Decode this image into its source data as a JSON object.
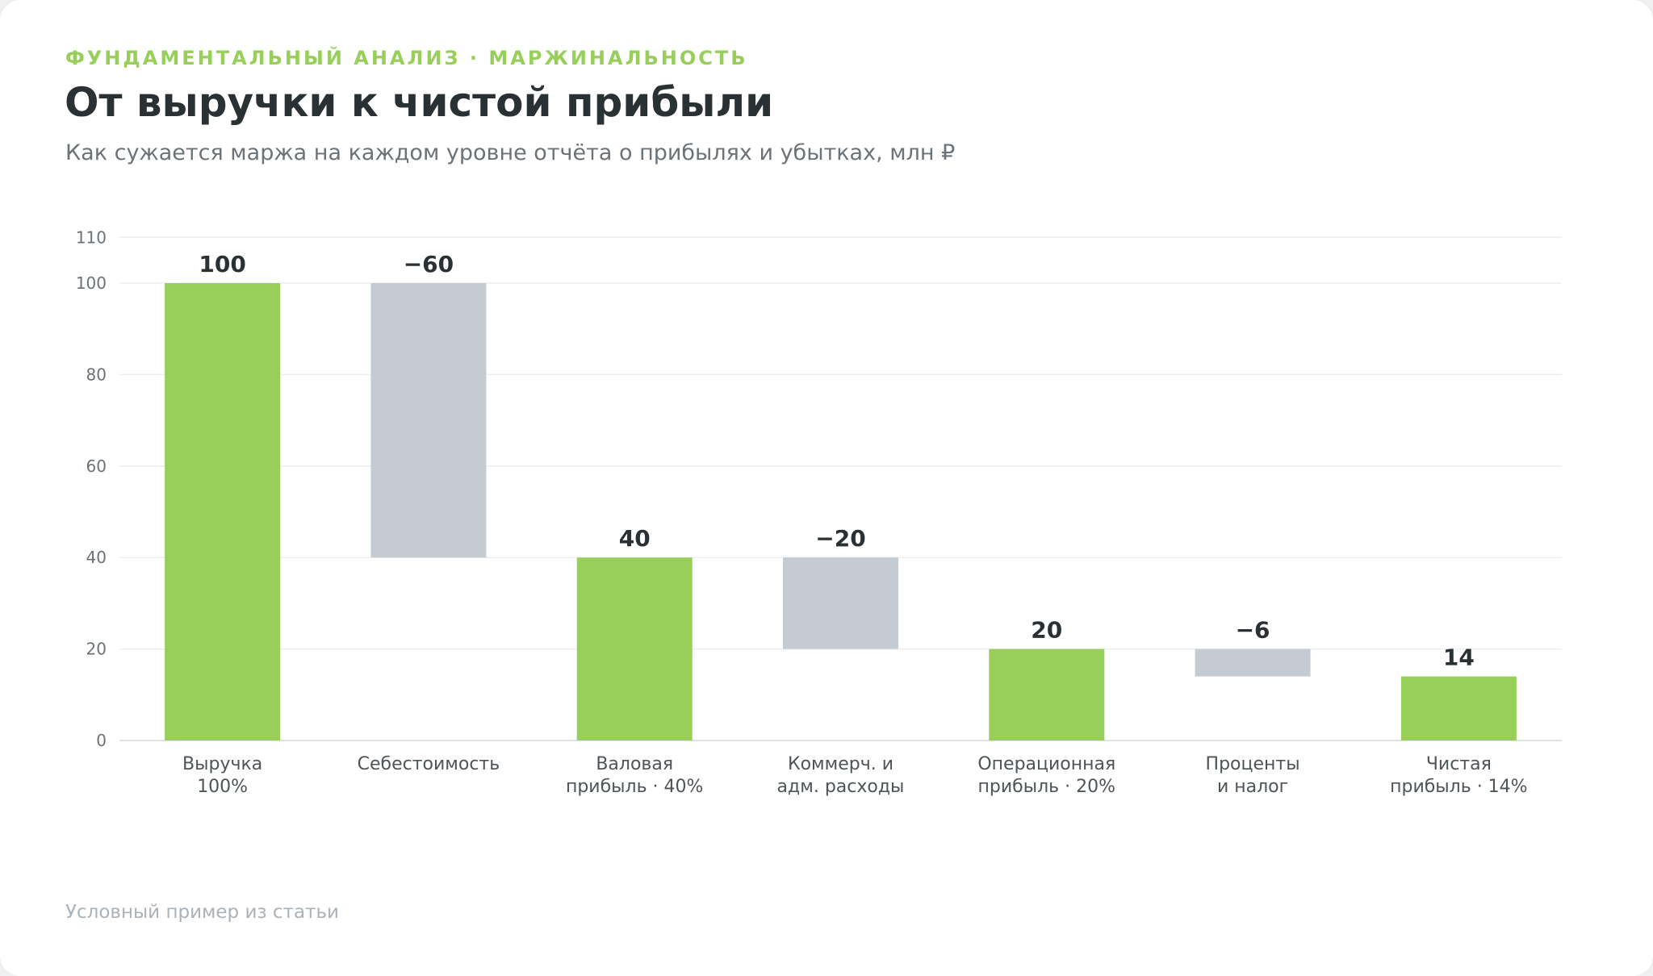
{
  "header": {
    "eyebrow": "ФУНДАМЕНТАЛЬНЫЙ АНАЛИЗ · МАРЖИНАЛЬНОСТЬ",
    "title": "От выручки к чистой прибыли",
    "subtitle": "Как сужается маржа на каждом уровне отчёта о прибылях и убытках, млн ₽"
  },
  "footer": {
    "note": "Условный пример из статьи"
  },
  "colors": {
    "total": "#97cf5a",
    "decrease": "#c5cbd2",
    "grid": "#eceef0",
    "axis": "#dfe3e6",
    "tick_text": "#6b7378",
    "value_text": "#2a3135",
    "category_text": "#4d5559"
  },
  "chart_data": {
    "type": "bar",
    "subtype": "waterfall",
    "title": "",
    "xlabel": "",
    "ylabel": "",
    "ylim": [
      0,
      110
    ],
    "yticks": [
      0,
      20,
      40,
      60,
      80,
      100,
      110
    ],
    "grid": true,
    "legend": "none",
    "bars": [
      {
        "label": [
          "Выручка",
          "100%"
        ],
        "kind": "total",
        "start": 0,
        "end": 100,
        "value_label": "100"
      },
      {
        "label": [
          "Себестоимость"
        ],
        "kind": "decrease",
        "start": 100,
        "end": 40,
        "value_label": "−60"
      },
      {
        "label": [
          "Валовая",
          "прибыль · 40%"
        ],
        "kind": "total",
        "start": 0,
        "end": 40,
        "value_label": "40"
      },
      {
        "label": [
          "Коммерч. и",
          "адм. расходы"
        ],
        "kind": "decrease",
        "start": 40,
        "end": 20,
        "value_label": "−20"
      },
      {
        "label": [
          "Операционная",
          "прибыль · 20%"
        ],
        "kind": "total",
        "start": 0,
        "end": 20,
        "value_label": "20"
      },
      {
        "label": [
          "Проценты",
          "и налог"
        ],
        "kind": "decrease",
        "start": 20,
        "end": 14,
        "value_label": "−6"
      },
      {
        "label": [
          "Чистая",
          "прибыль · 14%"
        ],
        "kind": "total",
        "start": 0,
        "end": 14,
        "value_label": "14"
      }
    ]
  }
}
